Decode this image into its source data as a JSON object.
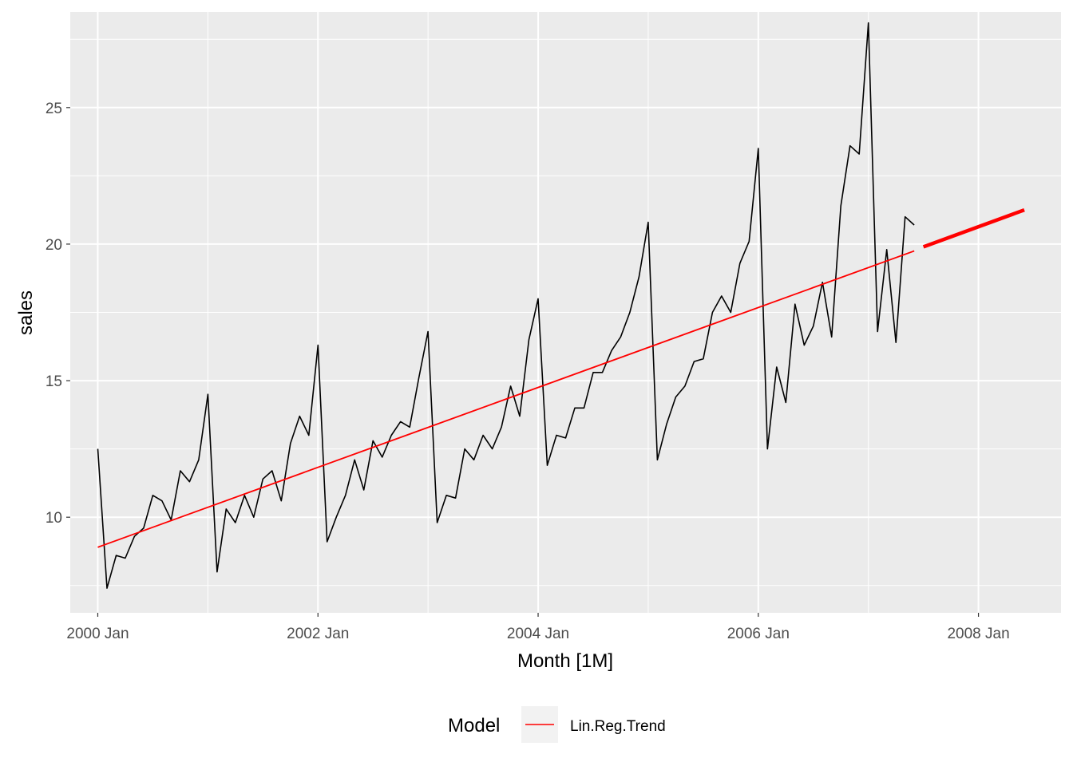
{
  "chart_data": {
    "type": "line",
    "xlabel": "Month [1M]",
    "ylabel": "sales",
    "xlim": [
      "1999-10",
      "2008-10"
    ],
    "ylim": [
      6.5,
      28.5
    ],
    "x_ticks": [
      "2000 Jan",
      "2002 Jan",
      "2004 Jan",
      "2006 Jan",
      "2008 Jan"
    ],
    "y_ticks": [
      10,
      15,
      20,
      25
    ],
    "grid": true,
    "legend": {
      "title": "Model",
      "placement": "bottom",
      "entries": [
        "Lin.Reg.Trend"
      ]
    },
    "colors": {
      "panel": "#ebebeb",
      "grid": "#ffffff",
      "series": "#000000",
      "trend": "#ff0000"
    },
    "series": [
      {
        "values": [
          [
            "2000-01",
            12.5
          ],
          [
            "2000-02",
            7.4
          ],
          [
            "2000-03",
            8.6
          ],
          [
            "2000-04",
            8.5
          ],
          [
            "2000-05",
            9.3
          ],
          [
            "2000-06",
            9.6
          ],
          [
            "2000-07",
            10.8
          ],
          [
            "2000-08",
            10.6
          ],
          [
            "2000-09",
            9.9
          ],
          [
            "2000-10",
            11.7
          ],
          [
            "2000-11",
            11.3
          ],
          [
            "2000-12",
            12.1
          ],
          [
            "2001-01",
            14.5
          ],
          [
            "2001-02",
            8.0
          ],
          [
            "2001-03",
            10.3
          ],
          [
            "2001-04",
            9.8
          ],
          [
            "2001-05",
            10.8
          ],
          [
            "2001-06",
            10.0
          ],
          [
            "2001-07",
            11.4
          ],
          [
            "2001-08",
            11.7
          ],
          [
            "2001-09",
            10.6
          ],
          [
            "2001-10",
            12.7
          ],
          [
            "2001-11",
            13.7
          ],
          [
            "2001-12",
            13.0
          ],
          [
            "2002-01",
            16.3
          ],
          [
            "2002-02",
            9.1
          ],
          [
            "2002-03",
            10.0
          ],
          [
            "2002-04",
            10.8
          ],
          [
            "2002-05",
            12.1
          ],
          [
            "2002-06",
            11.0
          ],
          [
            "2002-07",
            12.8
          ],
          [
            "2002-08",
            12.2
          ],
          [
            "2002-09",
            13.0
          ],
          [
            "2002-10",
            13.5
          ],
          [
            "2002-11",
            13.3
          ],
          [
            "2002-12",
            15.1
          ],
          [
            "2003-01",
            16.8
          ],
          [
            "2003-02",
            9.8
          ],
          [
            "2003-03",
            10.8
          ],
          [
            "2003-04",
            10.7
          ],
          [
            "2003-05",
            12.5
          ],
          [
            "2003-06",
            12.1
          ],
          [
            "2003-07",
            13.0
          ],
          [
            "2003-08",
            12.5
          ],
          [
            "2003-09",
            13.3
          ],
          [
            "2003-10",
            14.8
          ],
          [
            "2003-11",
            13.7
          ],
          [
            "2003-12",
            16.5
          ],
          [
            "2004-01",
            18.0
          ],
          [
            "2004-02",
            11.9
          ],
          [
            "2004-03",
            13.0
          ],
          [
            "2004-04",
            12.9
          ],
          [
            "2004-05",
            14.0
          ],
          [
            "2004-06",
            14.0
          ],
          [
            "2004-07",
            15.3
          ],
          [
            "2004-08",
            15.3
          ],
          [
            "2004-09",
            16.1
          ],
          [
            "2004-10",
            16.6
          ],
          [
            "2004-11",
            17.5
          ],
          [
            "2004-12",
            18.8
          ],
          [
            "2005-01",
            20.8
          ],
          [
            "2005-02",
            12.1
          ],
          [
            "2005-03",
            13.4
          ],
          [
            "2005-04",
            14.4
          ],
          [
            "2005-05",
            14.8
          ],
          [
            "2005-06",
            15.7
          ],
          [
            "2005-07",
            15.8
          ],
          [
            "2005-08",
            17.5
          ],
          [
            "2005-09",
            18.1
          ],
          [
            "2005-10",
            17.5
          ],
          [
            "2005-11",
            19.3
          ],
          [
            "2005-12",
            20.1
          ],
          [
            "2006-01",
            23.5
          ],
          [
            "2006-02",
            12.5
          ],
          [
            "2006-03",
            15.5
          ],
          [
            "2006-04",
            14.2
          ],
          [
            "2006-05",
            17.8
          ],
          [
            "2006-06",
            16.3
          ],
          [
            "2006-07",
            17.0
          ],
          [
            "2006-08",
            18.6
          ],
          [
            "2006-09",
            16.6
          ],
          [
            "2006-10",
            21.4
          ],
          [
            "2006-11",
            23.6
          ],
          [
            "2006-12",
            23.3
          ],
          [
            "2007-01",
            28.1
          ],
          [
            "2007-02",
            16.8
          ],
          [
            "2007-03",
            19.8
          ],
          [
            "2007-04",
            16.4
          ],
          [
            "2007-05",
            21.0
          ],
          [
            "2007-06",
            20.7
          ]
        ]
      },
      {
        "name": "Lin.Reg.Trend",
        "fitted": [
          [
            "2000-01",
            8.9
          ],
          [
            "2007-06",
            19.75
          ]
        ],
        "forecast": [
          [
            "2007-07",
            19.9
          ],
          [
            "2008-06",
            21.25
          ]
        ]
      }
    ]
  }
}
